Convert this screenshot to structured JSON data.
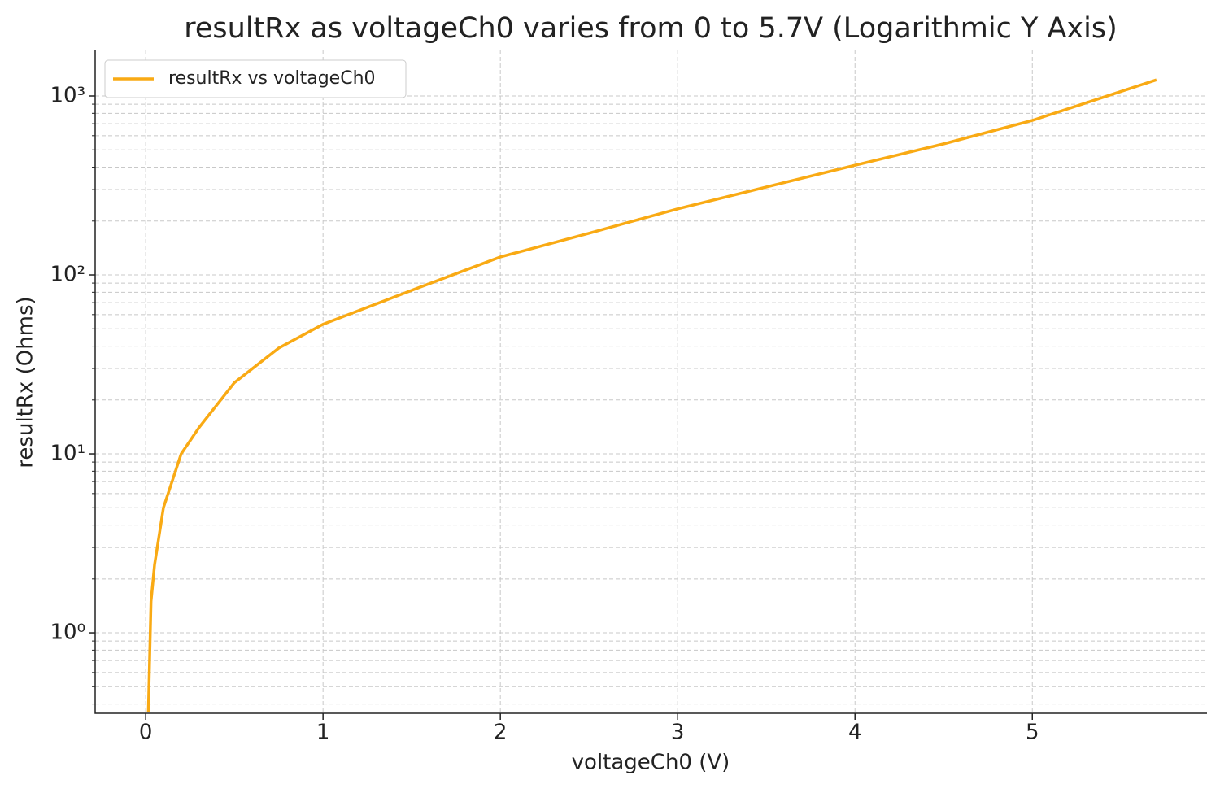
{
  "chart_data": {
    "type": "line",
    "title": "resultRx as voltageCh0 varies from 0 to 5.7V (Logarithmic Y Axis)",
    "x_label": "voltageCh0 (V)",
    "y_label": "resultRx (Ohms)",
    "yscale": "log",
    "grid": true,
    "legend": "upper left",
    "xlim": [
      -0.285,
      5.985
    ],
    "xticks": [
      0,
      1,
      2,
      3,
      4,
      5
    ],
    "ylim": [
      0.355,
      1797
    ],
    "yticks": [
      {
        "value": 1,
        "label": "10⁰"
      },
      {
        "value": 10,
        "label": "10¹"
      },
      {
        "value": 100,
        "label": "10²"
      },
      {
        "value": 1000,
        "label": "10³"
      }
    ],
    "yminorticks": [
      0.4,
      0.5,
      0.6,
      0.7,
      0.8,
      0.9,
      2,
      3,
      4,
      5,
      6,
      7,
      8,
      9,
      20,
      30,
      40,
      50,
      60,
      70,
      80,
      90,
      200,
      300,
      400,
      500,
      600,
      700,
      800,
      900
    ],
    "x": [
      0.015,
      0.03,
      0.05,
      0.1,
      0.2,
      0.3,
      0.5,
      0.75,
      1,
      1.5,
      2,
      2.5,
      3,
      3.5,
      4,
      4.5,
      5,
      5.7
    ],
    "series": [
      {
        "name": "resultRx vs voltageCh0",
        "color": "#f9aa14",
        "values": [
          0.36,
          1.5,
          2.4,
          5.0,
          10,
          14,
          25,
          39,
          53,
          82,
          126,
          171,
          234,
          310,
          410,
          540,
          730,
          1230
        ]
      }
    ]
  }
}
